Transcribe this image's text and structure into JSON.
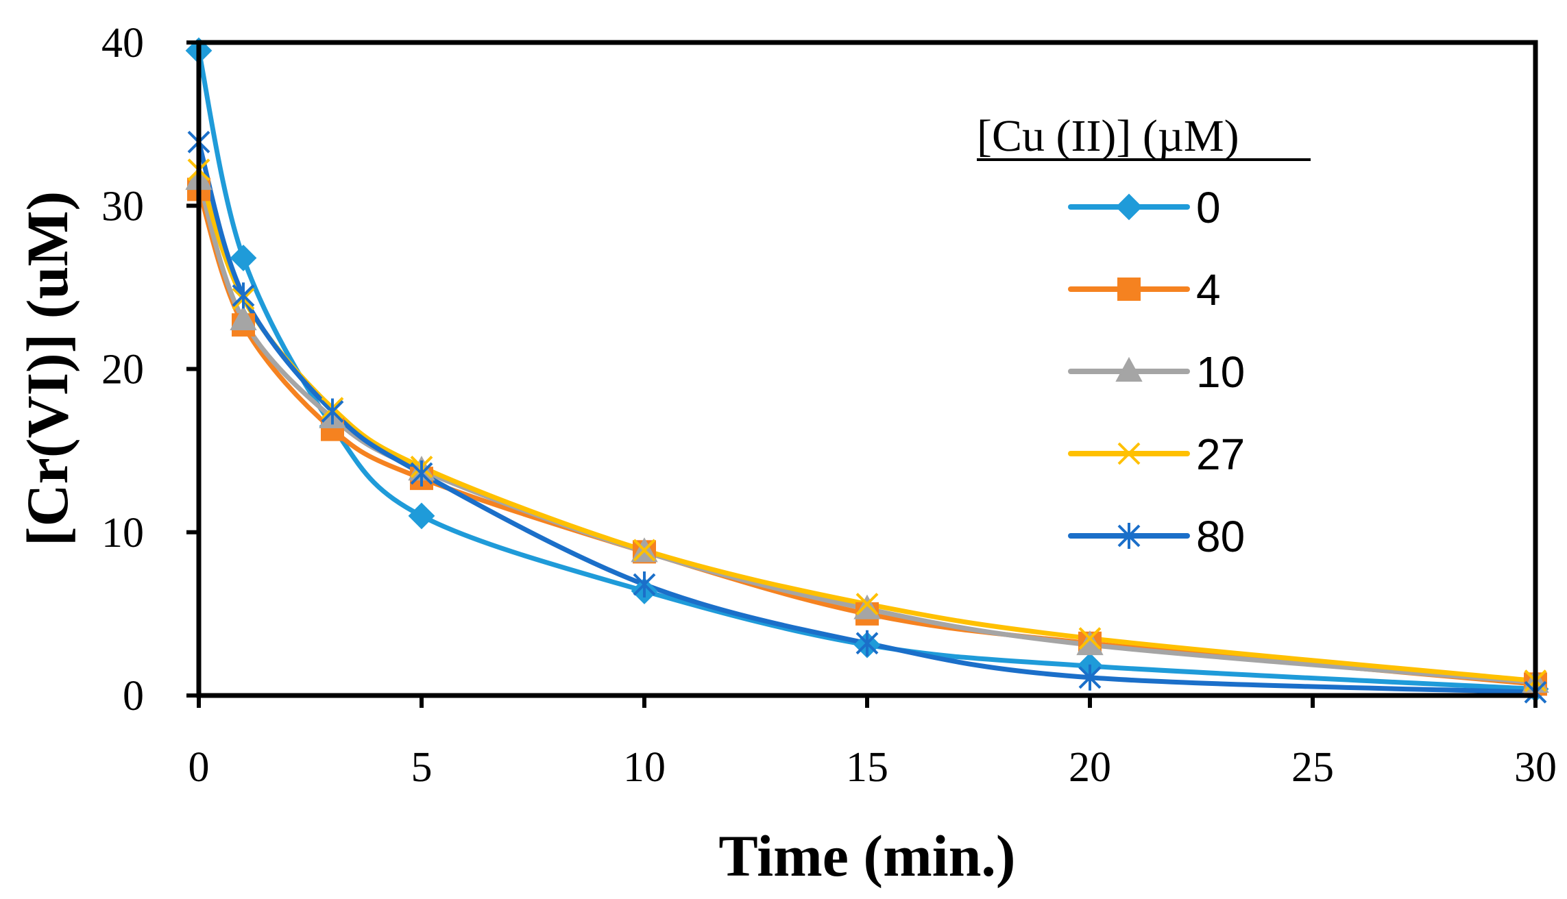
{
  "chart_data": {
    "type": "line",
    "title": "",
    "xlabel": "Time (min.)",
    "ylabel": "[Cr(VI)]  (uM)",
    "xlim": [
      0,
      30
    ],
    "ylim": [
      0,
      40
    ],
    "x_ticks": [
      0,
      5,
      10,
      15,
      20,
      25,
      30
    ],
    "y_ticks": [
      0,
      10,
      20,
      30,
      40
    ],
    "x_tick_labels": [
      "0",
      "5",
      "10",
      "15",
      "20",
      "25",
      "30"
    ],
    "y_tick_labels": [
      "0",
      "10",
      "20",
      "30",
      "40"
    ],
    "grid": false,
    "legend": {
      "title": "[Cu (II)] (µM)",
      "position": "top-right"
    },
    "series": [
      {
        "name": "0",
        "color": "#1F9BD9",
        "marker": "diamond",
        "x": [
          0,
          1,
          3,
          5,
          10,
          15,
          20,
          30
        ],
        "values": [
          39.5,
          26.8,
          16.5,
          11.0,
          6.4,
          3.1,
          1.8,
          0.4
        ]
      },
      {
        "name": "4",
        "color": "#F58220",
        "marker": "square",
        "x": [
          0,
          1,
          3,
          5,
          10,
          15,
          20,
          30
        ],
        "values": [
          31.0,
          22.7,
          16.3,
          13.3,
          8.8,
          5.0,
          3.2,
          0.7
        ]
      },
      {
        "name": "10",
        "color": "#A5A5A5",
        "marker": "triangle",
        "x": [
          0,
          1,
          3,
          5,
          10,
          15,
          20,
          30
        ],
        "values": [
          31.6,
          23.0,
          17.0,
          13.8,
          8.8,
          5.3,
          3.1,
          0.8
        ]
      },
      {
        "name": "27",
        "color": "#FFC000",
        "marker": "x",
        "x": [
          0,
          1,
          3,
          5,
          10,
          15,
          20,
          30
        ],
        "values": [
          32.2,
          24.3,
          17.6,
          14.0,
          8.9,
          5.6,
          3.5,
          0.9
        ]
      },
      {
        "name": "80",
        "color": "#1B6FC9",
        "marker": "asterisk",
        "x": [
          0,
          1,
          3,
          5,
          10,
          15,
          20,
          30
        ],
        "values": [
          33.9,
          24.5,
          17.4,
          13.6,
          6.8,
          3.2,
          1.1,
          0.2
        ]
      }
    ]
  }
}
